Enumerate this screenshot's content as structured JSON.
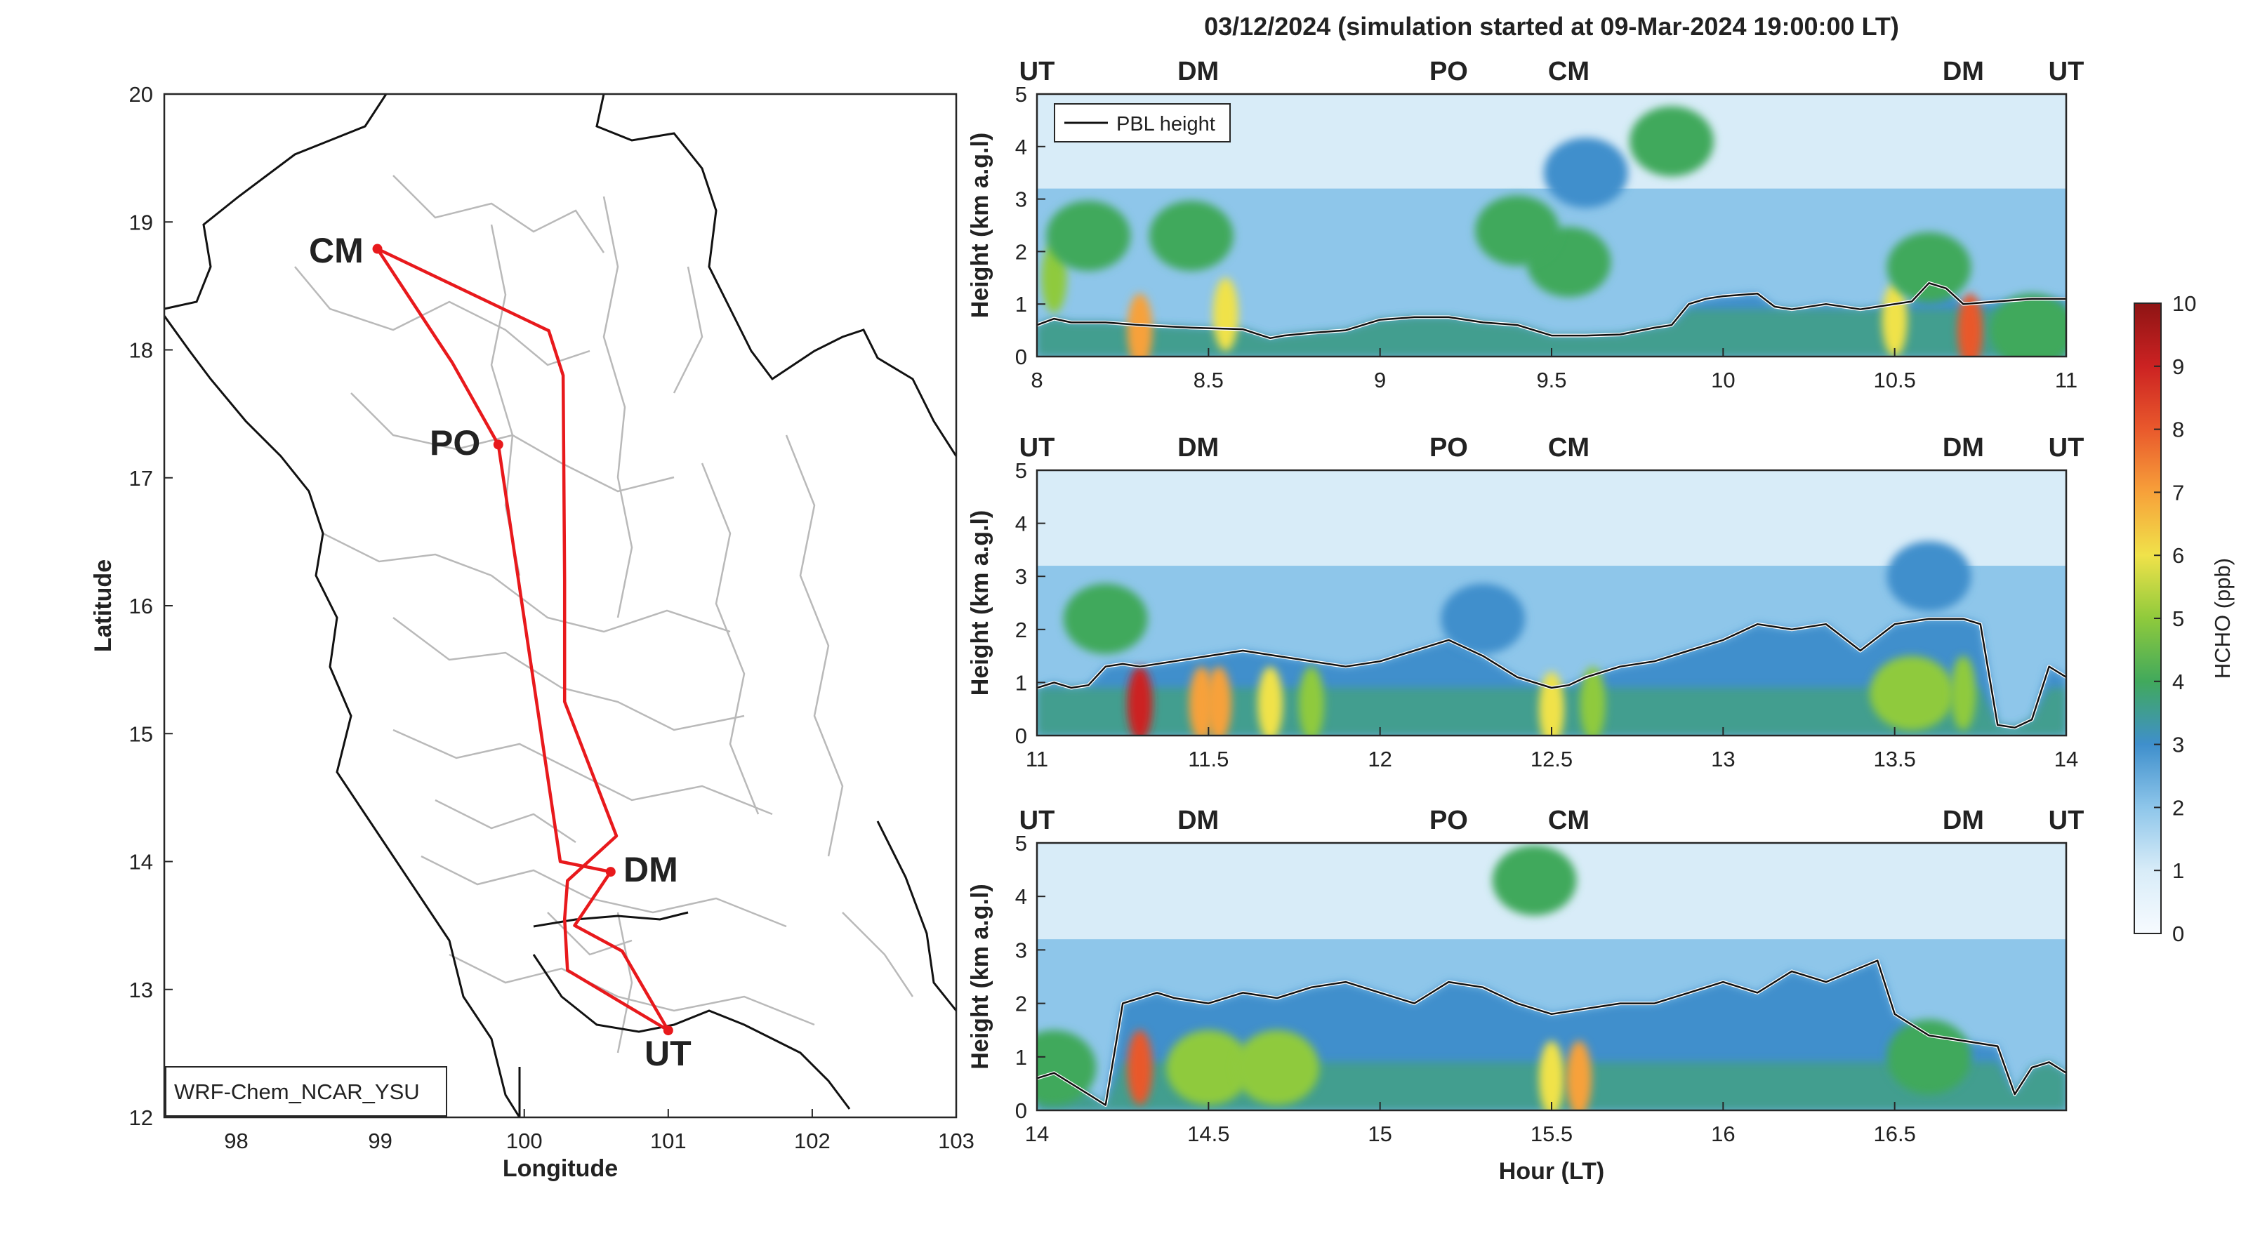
{
  "figure": {
    "title": "03/12/2024 (simulation started at 09-Mar-2024 19:00:00 LT)"
  },
  "colors": {
    "route": "#e8191c",
    "CM": "#f0b22a",
    "PO": "#7cb134",
    "DM": "#4bb7e6",
    "UT": "#111111",
    "CM_top": "#e0532a",
    "pbl_line": "#111111",
    "border": "#111111",
    "province": "#b9b9b9"
  },
  "map": {
    "xlabel": "Longitude",
    "ylabel": "Latitude",
    "xlim": [
      97.5,
      103
    ],
    "ylim": [
      12,
      20
    ],
    "xticks": [
      "98",
      "99",
      "100",
      "101",
      "102",
      "103"
    ],
    "yticks": [
      "12",
      "13",
      "14",
      "15",
      "16",
      "17",
      "18",
      "19",
      "20"
    ],
    "model_label": "WRF-Chem_NCAR_YSU",
    "sites": [
      {
        "name": "CM",
        "lon": 98.98,
        "lat": 18.79
      },
      {
        "name": "PO",
        "lon": 99.82,
        "lat": 17.26
      },
      {
        "name": "DM",
        "lon": 100.6,
        "lat": 13.92
      },
      {
        "name": "UT",
        "lon": 101.0,
        "lat": 12.68
      }
    ],
    "route": [
      [
        101.0,
        12.68
      ],
      [
        100.3,
        13.15
      ],
      [
        100.28,
        13.55
      ],
      [
        100.3,
        13.85
      ],
      [
        100.64,
        14.2
      ],
      [
        100.28,
        15.25
      ],
      [
        100.28,
        16.2
      ],
      [
        100.27,
        17.8
      ],
      [
        100.17,
        18.15
      ],
      [
        98.98,
        18.79
      ],
      [
        99.5,
        17.9
      ],
      [
        99.82,
        17.26
      ],
      [
        100.25,
        14.0
      ],
      [
        100.6,
        13.92
      ],
      [
        100.35,
        13.5
      ],
      [
        100.68,
        13.3
      ],
      [
        101.0,
        12.68
      ]
    ]
  },
  "chart_data": [
    {
      "type": "heatmap",
      "name": "curtain-1",
      "ylabel": "Height (km a.g.l)",
      "xlabel": "",
      "xlim": [
        8,
        11
      ],
      "ylim": [
        0,
        5
      ],
      "xticks": [
        "8",
        "8.5",
        "9",
        "9.5",
        "10",
        "10.5",
        "11"
      ],
      "yticks": [
        "0",
        "1",
        "2",
        "3",
        "4",
        "5"
      ],
      "legend": "PBL height",
      "site_labels": [
        {
          "name": "UT",
          "x": 8.0
        },
        {
          "name": "DM",
          "x": 8.47
        },
        {
          "name": "PO",
          "x": 9.2
        },
        {
          "name": "CM",
          "x": 9.55
        },
        {
          "name": "DM",
          "x": 10.7
        },
        {
          "name": "UT",
          "x": 11.0
        }
      ],
      "pbl_height": {
        "x": [
          8.0,
          8.05,
          8.1,
          8.2,
          8.3,
          8.45,
          8.6,
          8.68,
          8.72,
          8.8,
          8.9,
          9.0,
          9.1,
          9.2,
          9.3,
          9.4,
          9.5,
          9.6,
          9.7,
          9.8,
          9.85,
          9.9,
          9.95,
          10.0,
          10.1,
          10.15,
          10.2,
          10.3,
          10.4,
          10.5,
          10.55,
          10.6,
          10.65,
          10.7,
          10.8,
          10.9,
          11.0
        ],
        "y": [
          0.6,
          0.72,
          0.65,
          0.65,
          0.6,
          0.55,
          0.52,
          0.35,
          0.4,
          0.45,
          0.5,
          0.7,
          0.75,
          0.75,
          0.65,
          0.6,
          0.4,
          0.4,
          0.42,
          0.55,
          0.6,
          1.0,
          1.1,
          1.15,
          1.2,
          0.95,
          0.9,
          1.0,
          0.9,
          1.0,
          1.05,
          1.4,
          1.3,
          1.0,
          1.05,
          1.1,
          1.1
        ]
      },
      "blobs": [
        {
          "x": 8.3,
          "y": 0.5,
          "value": 7
        },
        {
          "x": 8.55,
          "y": 0.8,
          "value": 5.5
        },
        {
          "x": 8.05,
          "y": 1.5,
          "value": 5
        },
        {
          "x": 8.15,
          "y": 2.3,
          "value": 4
        },
        {
          "x": 8.45,
          "y": 2.3,
          "value": 3.8
        },
        {
          "x": 9.55,
          "y": 1.8,
          "value": 4
        },
        {
          "x": 9.4,
          "y": 2.4,
          "value": 3.5
        },
        {
          "x": 9.6,
          "y": 3.5,
          "value": 3.2
        },
        {
          "x": 9.85,
          "y": 4.1,
          "value": 3.8
        },
        {
          "x": 10.5,
          "y": 0.7,
          "value": 6
        },
        {
          "x": 10.72,
          "y": 0.5,
          "value": 7.5
        },
        {
          "x": 10.6,
          "y": 1.7,
          "value": 4
        },
        {
          "x": 10.9,
          "y": 0.5,
          "value": 4
        }
      ]
    },
    {
      "type": "heatmap",
      "name": "curtain-2",
      "ylabel": "Height (km a.g.l)",
      "xlabel": "",
      "xlim": [
        11,
        14
      ],
      "ylim": [
        0,
        5
      ],
      "xticks": [
        "11",
        "11.5",
        "12",
        "12.5",
        "13",
        "13.5",
        "14"
      ],
      "yticks": [
        "0",
        "1",
        "2",
        "3",
        "4",
        "5"
      ],
      "site_labels": [
        {
          "name": "UT",
          "x": 11.0
        },
        {
          "name": "DM",
          "x": 11.47
        },
        {
          "name": "PO",
          "x": 12.2
        },
        {
          "name": "CM",
          "x": 12.55
        },
        {
          "name": "DM",
          "x": 13.7
        },
        {
          "name": "UT",
          "x": 14.0
        }
      ],
      "pbl_height": {
        "x": [
          11.0,
          11.05,
          11.1,
          11.15,
          11.2,
          11.25,
          11.3,
          11.4,
          11.5,
          11.6,
          11.7,
          11.8,
          11.9,
          12.0,
          12.1,
          12.2,
          12.3,
          12.4,
          12.5,
          12.55,
          12.6,
          12.7,
          12.8,
          12.9,
          13.0,
          13.1,
          13.2,
          13.3,
          13.4,
          13.5,
          13.6,
          13.7,
          13.75,
          13.8,
          13.85,
          13.9,
          13.95,
          14.0
        ],
        "y": [
          0.9,
          1.0,
          0.9,
          0.95,
          1.3,
          1.35,
          1.3,
          1.4,
          1.5,
          1.6,
          1.5,
          1.4,
          1.3,
          1.4,
          1.6,
          1.8,
          1.5,
          1.1,
          0.9,
          0.95,
          1.1,
          1.3,
          1.4,
          1.6,
          1.8,
          2.1,
          2.0,
          2.1,
          1.6,
          2.1,
          2.2,
          2.2,
          2.1,
          0.2,
          0.15,
          0.3,
          1.3,
          1.1
        ]
      },
      "blobs": [
        {
          "x": 11.3,
          "y": 0.6,
          "value": 8.5
        },
        {
          "x": 11.48,
          "y": 0.6,
          "value": 6.5
        },
        {
          "x": 11.53,
          "y": 0.6,
          "value": 6.5
        },
        {
          "x": 11.68,
          "y": 0.6,
          "value": 6
        },
        {
          "x": 11.8,
          "y": 0.6,
          "value": 5
        },
        {
          "x": 12.5,
          "y": 0.5,
          "value": 5.5
        },
        {
          "x": 12.62,
          "y": 0.6,
          "value": 5
        },
        {
          "x": 13.55,
          "y": 0.8,
          "value": 4.5
        },
        {
          "x": 13.7,
          "y": 0.8,
          "value": 5
        },
        {
          "x": 11.2,
          "y": 2.2,
          "value": 3.8
        },
        {
          "x": 12.3,
          "y": 2.2,
          "value": 3.2
        },
        {
          "x": 13.6,
          "y": 3.0,
          "value": 2.5
        }
      ]
    },
    {
      "type": "heatmap",
      "name": "curtain-3",
      "ylabel": "Height (km a.g.l)",
      "xlabel": "Hour (LT)",
      "xlim": [
        14,
        17
      ],
      "ylim": [
        0,
        5
      ],
      "xticks": [
        "14",
        "14.5",
        "15",
        "15.5",
        "16",
        "16.5"
      ],
      "yticks": [
        "0",
        "1",
        "2",
        "3",
        "4",
        "5"
      ],
      "site_labels": [
        {
          "name": "UT",
          "x": 14.0
        },
        {
          "name": "DM",
          "x": 14.47
        },
        {
          "name": "PO",
          "x": 15.2
        },
        {
          "name": "CM",
          "x": 15.55
        },
        {
          "name": "DM",
          "x": 16.7
        },
        {
          "name": "UT",
          "x": 17.0
        }
      ],
      "pbl_height": {
        "x": [
          14.0,
          14.05,
          14.1,
          14.15,
          14.2,
          14.25,
          14.3,
          14.35,
          14.4,
          14.5,
          14.6,
          14.7,
          14.8,
          14.9,
          15.0,
          15.1,
          15.2,
          15.3,
          15.4,
          15.5,
          15.6,
          15.7,
          15.8,
          15.9,
          16.0,
          16.1,
          16.2,
          16.3,
          16.45,
          16.5,
          16.55,
          16.6,
          16.7,
          16.8,
          16.85,
          16.9,
          16.95,
          17.0
        ],
        "y": [
          0.6,
          0.7,
          0.5,
          0.3,
          0.1,
          2.0,
          2.1,
          2.2,
          2.1,
          2.0,
          2.2,
          2.1,
          2.3,
          2.4,
          2.2,
          2.0,
          2.4,
          2.3,
          2.0,
          1.8,
          1.9,
          2.0,
          2.0,
          2.2,
          2.4,
          2.2,
          2.6,
          2.4,
          2.8,
          1.8,
          1.6,
          1.4,
          1.3,
          1.2,
          0.3,
          0.8,
          0.9,
          0.7
        ]
      },
      "blobs": [
        {
          "x": 14.3,
          "y": 0.8,
          "value": 7.5
        },
        {
          "x": 14.5,
          "y": 0.8,
          "value": 4.5
        },
        {
          "x": 14.7,
          "y": 0.8,
          "value": 4.5
        },
        {
          "x": 15.5,
          "y": 0.6,
          "value": 6
        },
        {
          "x": 15.58,
          "y": 0.6,
          "value": 6.5
        },
        {
          "x": 15.45,
          "y": 4.3,
          "value": 3.5
        },
        {
          "x": 16.6,
          "y": 1.0,
          "value": 4
        },
        {
          "x": 14.05,
          "y": 0.8,
          "value": 4
        }
      ]
    }
  ],
  "colorbar": {
    "label": "HCHO (ppb)",
    "min": 0,
    "max": 10,
    "ticks": [
      "0",
      "1",
      "2",
      "3",
      "4",
      "5",
      "6",
      "7",
      "8",
      "9",
      "10"
    ]
  }
}
